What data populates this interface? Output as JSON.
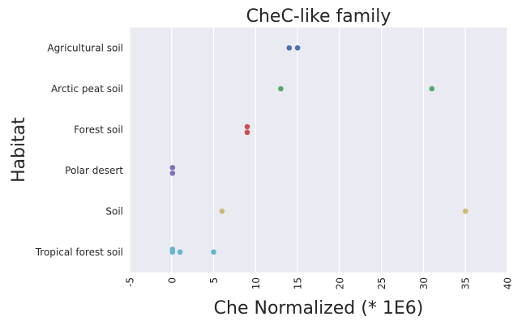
{
  "chart_data": {
    "type": "scatter",
    "title": "CheC-like family",
    "xlabel": "Che Normalized (* 1E6)",
    "ylabel": "Habitat",
    "xlim": [
      -5,
      40
    ],
    "xticks": [
      "-5",
      "0",
      "5",
      "10",
      "15",
      "20",
      "25",
      "30",
      "35",
      "40"
    ],
    "grid": "vertical",
    "categories": [
      "Agricultural soil",
      "Arctic peat soil",
      "Forest soil",
      "Polar desert",
      "Soil",
      "Tropical forest soil"
    ],
    "series": [
      {
        "category": "Agricultural soil",
        "color": "#4c72b0",
        "points": [
          {
            "x": 14,
            "jitter": 0
          },
          {
            "x": 15,
            "jitter": 0
          }
        ]
      },
      {
        "category": "Arctic peat soil",
        "color": "#55a868",
        "points": [
          {
            "x": 13,
            "jitter": 0
          },
          {
            "x": 31,
            "jitter": 0
          }
        ]
      },
      {
        "category": "Forest soil",
        "color": "#c44e52",
        "points": [
          {
            "x": 9,
            "jitter": -1
          },
          {
            "x": 9,
            "jitter": 1
          }
        ]
      },
      {
        "category": "Polar desert",
        "color": "#8172b2",
        "points": [
          {
            "x": 0.1,
            "jitter": -1
          },
          {
            "x": 0.1,
            "jitter": 1
          }
        ]
      },
      {
        "category": "Soil",
        "color": "#ccb974",
        "points": [
          {
            "x": 6,
            "jitter": 0
          },
          {
            "x": 35,
            "jitter": 0
          }
        ]
      },
      {
        "category": "Tropical forest soil",
        "color": "#64b5cd",
        "points": [
          {
            "x": 0.1,
            "jitter": -1
          },
          {
            "x": 0.1,
            "jitter": 0
          },
          {
            "x": 1,
            "jitter": 0
          },
          {
            "x": 5,
            "jitter": 0
          }
        ]
      }
    ]
  }
}
